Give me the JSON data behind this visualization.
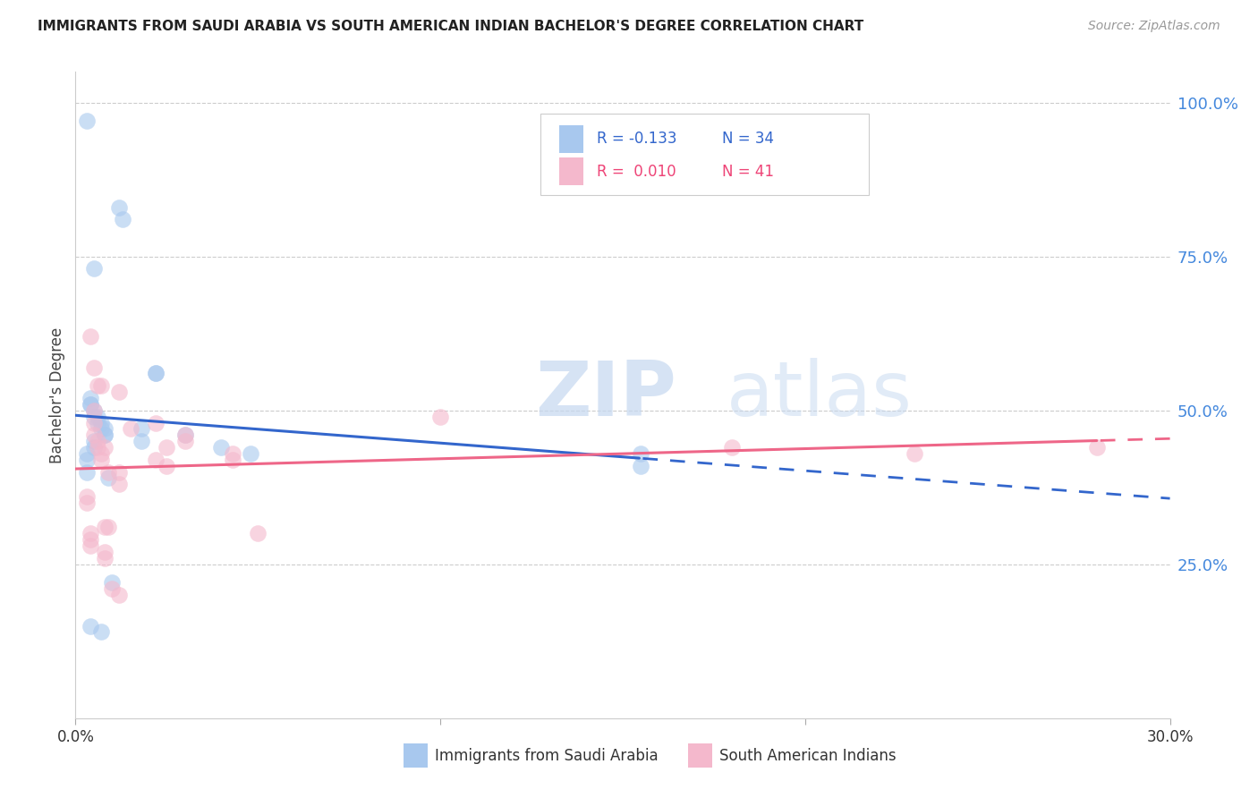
{
  "title": "IMMIGRANTS FROM SAUDI ARABIA VS SOUTH AMERICAN INDIAN BACHELOR'S DEGREE CORRELATION CHART",
  "source": "Source: ZipAtlas.com",
  "ylabel": "Bachelor's Degree",
  "ytick_labels": [
    "100.0%",
    "75.0%",
    "50.0%",
    "25.0%"
  ],
  "ytick_values": [
    1.0,
    0.75,
    0.5,
    0.25
  ],
  "xlim": [
    0.0,
    0.3
  ],
  "ylim": [
    0.0,
    1.05
  ],
  "legend1_label": "Immigrants from Saudi Arabia",
  "legend2_label": "South American Indians",
  "legend1_R": "R = -0.133",
  "legend1_N": "N = 34",
  "legend2_R": "R =  0.010",
  "legend2_N": "N = 41",
  "blue_color": "#a8c8ee",
  "pink_color": "#f4b8cc",
  "line_blue": "#3366cc",
  "line_pink": "#ee6688",
  "watermark_zip": "ZIP",
  "watermark_atlas": "atlas",
  "saudi_x": [
    0.003,
    0.012,
    0.013,
    0.005,
    0.022,
    0.022,
    0.004,
    0.004,
    0.004,
    0.005,
    0.005,
    0.006,
    0.006,
    0.007,
    0.007,
    0.008,
    0.008,
    0.008,
    0.005,
    0.005,
    0.003,
    0.018,
    0.018,
    0.03,
    0.04,
    0.048,
    0.003,
    0.01,
    0.155,
    0.155,
    0.003,
    0.009,
    0.004,
    0.007
  ],
  "saudi_y": [
    0.97,
    0.83,
    0.81,
    0.73,
    0.56,
    0.56,
    0.52,
    0.51,
    0.51,
    0.5,
    0.49,
    0.49,
    0.48,
    0.48,
    0.47,
    0.47,
    0.46,
    0.46,
    0.45,
    0.44,
    0.43,
    0.47,
    0.45,
    0.46,
    0.44,
    0.43,
    0.42,
    0.22,
    0.43,
    0.41,
    0.4,
    0.39,
    0.15,
    0.14
  ],
  "indian_x": [
    0.004,
    0.005,
    0.006,
    0.007,
    0.012,
    0.005,
    0.005,
    0.005,
    0.006,
    0.006,
    0.008,
    0.007,
    0.007,
    0.009,
    0.022,
    0.025,
    0.012,
    0.012,
    0.022,
    0.015,
    0.03,
    0.03,
    0.025,
    0.043,
    0.043,
    0.003,
    0.003,
    0.004,
    0.004,
    0.004,
    0.008,
    0.008,
    0.008,
    0.009,
    0.01,
    0.012,
    0.05,
    0.1,
    0.18,
    0.23,
    0.28
  ],
  "indian_y": [
    0.62,
    0.57,
    0.54,
    0.54,
    0.53,
    0.5,
    0.48,
    0.46,
    0.45,
    0.44,
    0.44,
    0.43,
    0.42,
    0.4,
    0.42,
    0.41,
    0.4,
    0.38,
    0.48,
    0.47,
    0.46,
    0.45,
    0.44,
    0.43,
    0.42,
    0.36,
    0.35,
    0.3,
    0.29,
    0.28,
    0.27,
    0.26,
    0.31,
    0.31,
    0.21,
    0.2,
    0.3,
    0.49,
    0.44,
    0.43,
    0.44
  ]
}
